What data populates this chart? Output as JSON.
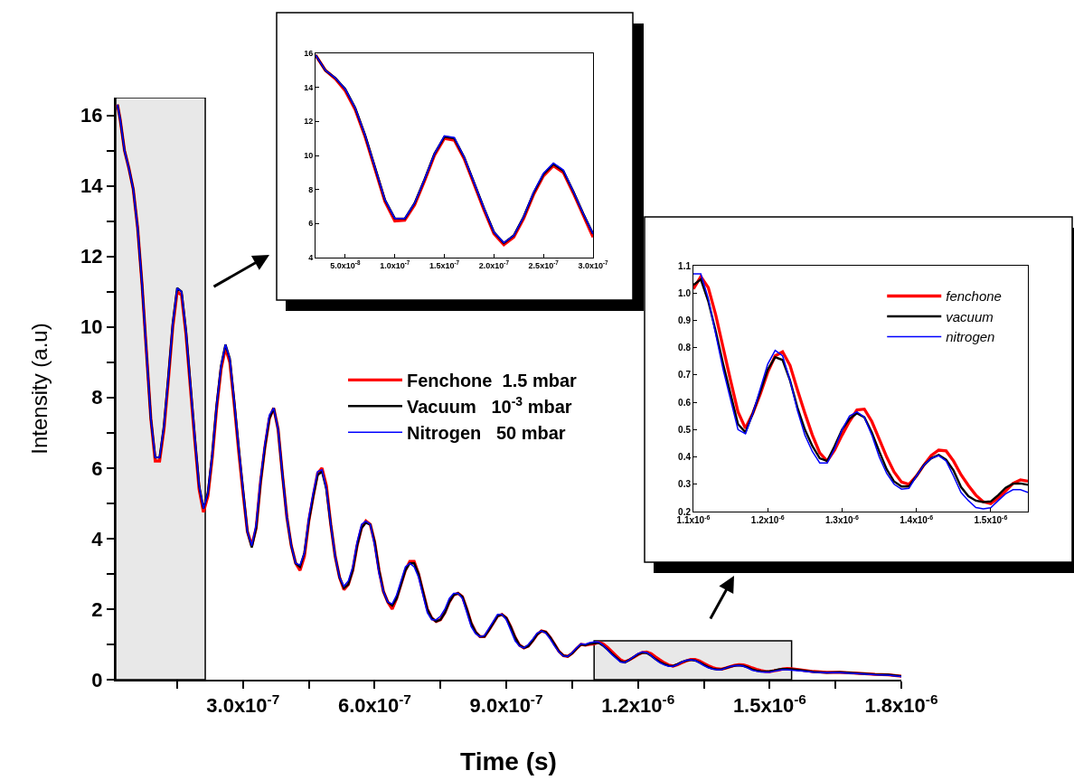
{
  "chart_data": [
    {
      "type": "line",
      "xlabel": "Time (s)",
      "ylabel": "Intensity (a.u)",
      "xlim": [
        1e-08,
        1.8e-06
      ],
      "ylim": [
        0,
        16.5
      ],
      "xticks": [
        {
          "value": 1.5e-07,
          "label": null
        },
        {
          "value": 3e-07,
          "label": "3.0x10$^{-7}$"
        },
        {
          "value": 4.5e-07,
          "label": null
        },
        {
          "value": 6e-07,
          "label": "6.0x10$^{-7}$"
        },
        {
          "value": 7.5e-07,
          "label": null
        },
        {
          "value": 9e-07,
          "label": "9.0x10$^{-7}$"
        },
        {
          "value": 1.05e-06,
          "label": null
        },
        {
          "value": 1.2e-06,
          "label": "1.2x10$^{-6}$"
        },
        {
          "value": 1.35e-06,
          "label": null
        },
        {
          "value": 1.5e-06,
          "label": "1.5x10$^{-6}$"
        },
        {
          "value": 1.65e-06,
          "label": null
        },
        {
          "value": 1.8e-06,
          "label": "1.8x10$^{-6}$"
        }
      ],
      "yticks": [
        0,
        {
          "value": 1,
          "label": null
        },
        2,
        {
          "value": 3,
          "label": null
        },
        4,
        {
          "value": 5,
          "label": null
        },
        6,
        {
          "value": 7,
          "label": null
        },
        8,
        {
          "value": 9,
          "label": null
        },
        10,
        {
          "value": 11,
          "label": null
        },
        12,
        {
          "value": 13,
          "label": null
        },
        14,
        {
          "value": 15,
          "label": null
        },
        16
      ],
      "legend": "center",
      "grid": false,
      "marker": "none",
      "line_style": "solid",
      "bands": [
        {
          "axis": "x",
          "from": 1e-08,
          "to": 2.14e-07,
          "color": "#bdbdbd"
        },
        {
          "axis": "x",
          "from": 1.1e-06,
          "to": 1.55e-06,
          "color": "#bdbdbd"
        }
      ],
      "x": [
        1.4e-08,
        2e-08,
        3e-08,
        4e-08,
        5e-08,
        6e-08,
        7e-08,
        8e-08,
        9e-08,
        1e-07,
        1.1e-07,
        1.2e-07,
        1.3e-07,
        1.4e-07,
        1.5e-07,
        1.6e-07,
        1.7e-07,
        1.8e-07,
        1.9e-07,
        2e-07,
        2.1e-07,
        2.2e-07,
        2.3e-07,
        2.4e-07,
        2.5e-07,
        2.6e-07,
        2.7e-07,
        2.8e-07,
        2.9e-07,
        3e-07,
        3.1e-07,
        3.2e-07,
        3.3e-07,
        3.4e-07,
        3.5e-07,
        3.6e-07,
        3.7e-07,
        3.8e-07,
        3.9e-07,
        4e-07,
        4.1e-07,
        4.2e-07,
        4.3e-07,
        4.4e-07,
        4.5e-07,
        4.6e-07,
        4.7e-07,
        4.8e-07,
        4.9e-07,
        5e-07,
        5.1e-07,
        5.2e-07,
        5.3e-07,
        5.4e-07,
        5.5e-07,
        5.6e-07,
        5.7e-07,
        5.8e-07,
        5.9e-07,
        6e-07,
        6.1e-07,
        6.2e-07,
        6.3e-07,
        6.4e-07,
        6.5e-07,
        6.6e-07,
        6.7e-07,
        6.8e-07,
        6.9e-07,
        7e-07,
        7.1e-07,
        7.2e-07,
        7.3e-07,
        7.4e-07,
        7.5e-07,
        7.6e-07,
        7.7e-07,
        7.8e-07,
        7.9e-07,
        8e-07,
        8.1e-07,
        8.2e-07,
        8.3e-07,
        8.4e-07,
        8.5e-07,
        8.6e-07,
        8.7e-07,
        8.8e-07,
        8.9e-07,
        9e-07,
        9.1e-07,
        9.2e-07,
        9.3e-07,
        9.4e-07,
        9.5e-07,
        9.6e-07,
        9.7e-07,
        9.8e-07,
        9.9e-07,
        1e-06,
        1.01e-06,
        1.02e-06,
        1.03e-06,
        1.04e-06,
        1.05e-06,
        1.06e-06,
        1.07e-06,
        1.08e-06,
        1.09e-06,
        1.1e-06,
        1.11e-06,
        1.12e-06,
        1.13e-06,
        1.14e-06,
        1.15e-06,
        1.16e-06,
        1.17e-06,
        1.18e-06,
        1.19e-06,
        1.2e-06,
        1.21e-06,
        1.22e-06,
        1.23e-06,
        1.24e-06,
        1.25e-06,
        1.26e-06,
        1.27e-06,
        1.28e-06,
        1.29e-06,
        1.3e-06,
        1.31e-06,
        1.32e-06,
        1.33e-06,
        1.34e-06,
        1.35e-06,
        1.36e-06,
        1.37e-06,
        1.38e-06,
        1.39e-06,
        1.4e-06,
        1.41e-06,
        1.42e-06,
        1.43e-06,
        1.44e-06,
        1.45e-06,
        1.46e-06,
        1.47e-06,
        1.48e-06,
        1.49e-06,
        1.5e-06,
        1.51e-06,
        1.52e-06,
        1.53e-06,
        1.54e-06,
        1.55e-06,
        1.57e-06,
        1.6e-06,
        1.63e-06,
        1.66e-06,
        1.7e-06,
        1.74e-06,
        1.77e-06,
        1.8e-06
      ],
      "series": [
        {
          "name": "Fenchone  1.5 mbar",
          "color": "#ff0000",
          "values": [
            16.3,
            15.9,
            15.0,
            14.5,
            13.9,
            12.8,
            11.2,
            9.3,
            7.4,
            6.2,
            6.2,
            7.1,
            8.5,
            10.0,
            11.0,
            10.9,
            9.8,
            8.3,
            6.8,
            5.4,
            4.75,
            5.2,
            6.3,
            7.7,
            8.8,
            9.4,
            9.0,
            7.8,
            6.5,
            5.3,
            4.2,
            3.8,
            4.3,
            5.6,
            6.6,
            7.4,
            7.7,
            7.1,
            5.8,
            4.6,
            3.8,
            3.3,
            3.1,
            3.5,
            4.5,
            5.2,
            5.85,
            6.0,
            5.5,
            4.4,
            3.5,
            2.9,
            2.55,
            2.7,
            3.1,
            3.8,
            4.3,
            4.5,
            4.4,
            3.9,
            3.1,
            2.5,
            2.2,
            2.0,
            2.3,
            2.7,
            3.1,
            3.35,
            3.35,
            3.0,
            2.5,
            2.0,
            1.75,
            1.65,
            1.7,
            1.9,
            2.2,
            2.4,
            2.45,
            2.35,
            2.0,
            1.6,
            1.35,
            1.22,
            1.22,
            1.4,
            1.6,
            1.8,
            1.85,
            1.75,
            1.5,
            1.2,
            0.98,
            0.9,
            0.95,
            1.1,
            1.28,
            1.38,
            1.35,
            1.2,
            1.0,
            0.8,
            0.68,
            0.66,
            0.75,
            0.88,
            1.0,
            0.98,
            1.0,
            1.015,
            1.06,
            1.02,
            0.92,
            0.8,
            0.68,
            0.565,
            0.505,
            0.56,
            0.63,
            0.71,
            0.77,
            0.785,
            0.735,
            0.645,
            0.56,
            0.48,
            0.415,
            0.385,
            0.425,
            0.48,
            0.53,
            0.572,
            0.575,
            0.53,
            0.465,
            0.4,
            0.345,
            0.308,
            0.3,
            0.33,
            0.37,
            0.405,
            0.425,
            0.422,
            0.385,
            0.335,
            0.295,
            0.26,
            0.236,
            0.229,
            0.25,
            0.275,
            0.303,
            0.316,
            0.311,
            0.28,
            0.23,
            0.21,
            0.21,
            0.18,
            0.15,
            0.14,
            0.1
          ]
        },
        {
          "name": "Vacuum   10$^{-3}$ mbar",
          "color": "#000000",
          "values": [
            16.3,
            15.9,
            15.0,
            14.5,
            13.9,
            12.8,
            11.2,
            9.3,
            7.4,
            6.3,
            6.3,
            7.2,
            8.6,
            10.1,
            11.1,
            11.0,
            9.9,
            8.4,
            6.9,
            5.5,
            4.85,
            5.3,
            6.4,
            7.8,
            8.9,
            9.5,
            9.1,
            7.9,
            6.6,
            5.4,
            4.2,
            3.75,
            4.3,
            5.6,
            6.6,
            7.4,
            7.7,
            7.1,
            5.8,
            4.6,
            3.8,
            3.3,
            3.2,
            3.6,
            4.5,
            5.2,
            5.8,
            5.9,
            5.4,
            4.4,
            3.5,
            2.9,
            2.6,
            2.7,
            3.1,
            3.8,
            4.3,
            4.45,
            4.4,
            3.9,
            3.1,
            2.5,
            2.2,
            2.1,
            2.3,
            2.7,
            3.1,
            3.3,
            3.3,
            3.0,
            2.5,
            2.0,
            1.75,
            1.65,
            1.7,
            1.9,
            2.2,
            2.4,
            2.45,
            2.35,
            2.0,
            1.6,
            1.35,
            1.22,
            1.22,
            1.4,
            1.6,
            1.8,
            1.85,
            1.75,
            1.5,
            1.2,
            0.98,
            0.9,
            0.95,
            1.1,
            1.28,
            1.38,
            1.35,
            1.2,
            1.0,
            0.8,
            0.68,
            0.66,
            0.75,
            0.88,
            1.0,
            0.98,
            1.02,
            1.03,
            1.05,
            0.97,
            0.86,
            0.74,
            0.63,
            0.52,
            0.49,
            0.56,
            0.64,
            0.72,
            0.765,
            0.755,
            0.68,
            0.58,
            0.5,
            0.44,
            0.395,
            0.385,
            0.44,
            0.5,
            0.54,
            0.56,
            0.545,
            0.49,
            0.42,
            0.355,
            0.31,
            0.292,
            0.292,
            0.33,
            0.37,
            0.395,
            0.407,
            0.39,
            0.35,
            0.29,
            0.256,
            0.24,
            0.235,
            0.237,
            0.26,
            0.287,
            0.302,
            0.303,
            0.298,
            0.27,
            0.22,
            0.2,
            0.21,
            0.18,
            0.15,
            0.14,
            0.1
          ]
        },
        {
          "name": "Nitrogen   50 mbar",
          "color": "#0000ff",
          "values": [
            16.3,
            15.9,
            15.0,
            14.5,
            13.9,
            12.8,
            11.2,
            9.3,
            7.4,
            6.3,
            6.3,
            7.2,
            8.6,
            10.1,
            11.1,
            11.0,
            9.9,
            8.4,
            6.9,
            5.5,
            4.85,
            5.3,
            6.4,
            7.8,
            8.9,
            9.5,
            9.1,
            7.9,
            6.6,
            5.4,
            4.2,
            3.8,
            4.4,
            5.7,
            6.7,
            7.5,
            7.7,
            7.1,
            5.8,
            4.6,
            3.8,
            3.3,
            3.25,
            3.6,
            4.6,
            5.3,
            5.9,
            5.95,
            5.4,
            4.4,
            3.5,
            2.9,
            2.65,
            2.8,
            3.2,
            3.9,
            4.4,
            4.5,
            4.4,
            3.8,
            3.0,
            2.5,
            2.2,
            2.15,
            2.4,
            2.8,
            3.2,
            3.3,
            3.2,
            2.9,
            2.4,
            1.9,
            1.7,
            1.7,
            1.8,
            2.0,
            2.3,
            2.45,
            2.45,
            2.3,
            1.9,
            1.5,
            1.3,
            1.22,
            1.25,
            1.45,
            1.65,
            1.85,
            1.85,
            1.7,
            1.4,
            1.1,
            0.95,
            0.9,
            1.0,
            1.15,
            1.32,
            1.38,
            1.32,
            1.15,
            0.95,
            0.78,
            0.67,
            0.66,
            0.77,
            0.9,
            1.02,
            1.0,
            1.05,
            1.07,
            1.07,
            0.98,
            0.85,
            0.72,
            0.61,
            0.5,
            0.485,
            0.56,
            0.65,
            0.74,
            0.79,
            0.77,
            0.68,
            0.57,
            0.48,
            0.42,
            0.378,
            0.378,
            0.43,
            0.5,
            0.55,
            0.565,
            0.545,
            0.48,
            0.4,
            0.34,
            0.3,
            0.282,
            0.285,
            0.33,
            0.37,
            0.395,
            0.405,
            0.385,
            0.33,
            0.27,
            0.24,
            0.215,
            0.21,
            0.214,
            0.24,
            0.265,
            0.28,
            0.28,
            0.27,
            0.25,
            0.21,
            0.2,
            0.2,
            0.17,
            0.14,
            0.13,
            0.09
          ]
        }
      ]
    },
    {
      "type": "line",
      "xlim": [
        2e-08,
        3e-07
      ],
      "ylim": [
        4,
        16
      ],
      "xticks": [
        {
          "value": 5e-08,
          "label": "5.0x10$^{-8}$"
        },
        {
          "value": 1e-07,
          "label": "1.0x10$^{-7}$"
        },
        {
          "value": 1.5e-07,
          "label": "1.5x10$^{-7}$"
        },
        {
          "value": 2e-07,
          "label": "2.0x10$^{-7}$"
        },
        {
          "value": 2.5e-07,
          "label": "2.5x10$^{-7}$"
        },
        {
          "value": 3e-07,
          "label": "3.0x10$^{-7}$"
        }
      ],
      "yticks": [
        4,
        6,
        8,
        10,
        12,
        14,
        16
      ],
      "grid": false,
      "marker": "none",
      "line_style": "solid",
      "x": [
        2e-08,
        3e-08,
        4e-08,
        5e-08,
        6e-08,
        7e-08,
        8e-08,
        9e-08,
        1e-07,
        1.1e-07,
        1.2e-07,
        1.3e-07,
        1.4e-07,
        1.5e-07,
        1.6e-07,
        1.7e-07,
        1.8e-07,
        1.9e-07,
        2e-07,
        2.1e-07,
        2.2e-07,
        2.3e-07,
        2.4e-07,
        2.5e-07,
        2.6e-07,
        2.7e-07,
        2.8e-07,
        2.9e-07,
        3e-07
      ],
      "series": [
        {
          "color": "#ff0000",
          "values": [
            15.9,
            15.0,
            14.5,
            13.8,
            12.7,
            11.1,
            9.2,
            7.3,
            6.15,
            6.2,
            7.1,
            8.5,
            10.0,
            11.0,
            10.9,
            9.8,
            8.3,
            6.8,
            5.4,
            4.75,
            5.2,
            6.3,
            7.7,
            8.8,
            9.4,
            9.0,
            7.8,
            6.5,
            5.2
          ]
        },
        {
          "color": "#000000",
          "values": [
            15.9,
            15.0,
            14.55,
            13.9,
            12.8,
            11.2,
            9.3,
            7.4,
            6.3,
            6.28,
            7.2,
            8.6,
            10.1,
            11.1,
            11.0,
            9.9,
            8.4,
            6.9,
            5.5,
            4.85,
            5.3,
            6.4,
            7.8,
            8.9,
            9.5,
            9.1,
            7.9,
            6.6,
            5.4
          ]
        },
        {
          "color": "#0000ff",
          "values": [
            15.9,
            15.0,
            14.55,
            13.9,
            12.8,
            11.2,
            9.3,
            7.4,
            6.3,
            6.3,
            7.2,
            8.6,
            10.1,
            11.15,
            11.05,
            9.9,
            8.4,
            6.9,
            5.5,
            4.87,
            5.3,
            6.4,
            7.85,
            8.95,
            9.55,
            9.15,
            7.9,
            6.6,
            5.4
          ]
        }
      ]
    },
    {
      "type": "line",
      "xlim": [
        1.1e-06,
        1.55e-06
      ],
      "ylim": [
        0.2,
        1.1
      ],
      "xticks": [
        {
          "value": 1.1e-06,
          "label": "1.1x10$^{-6}$"
        },
        {
          "value": 1.2e-06,
          "label": "1.2x10$^{-6}$"
        },
        {
          "value": 1.3e-06,
          "label": "1.3x10$^{-6}$"
        },
        {
          "value": 1.4e-06,
          "label": "1.4x10$^{-6}$"
        },
        {
          "value": 1.5e-06,
          "label": "1.5x10$^{-6}$"
        }
      ],
      "yticks": [
        0.2,
        0.3,
        0.4,
        0.5,
        0.6,
        0.7,
        0.8,
        0.9,
        {
          "value": 1.0,
          "label": "1.0"
        },
        1.1
      ],
      "legend": "top right",
      "grid": false,
      "marker": "none",
      "line_style": "solid",
      "x": [
        1.1e-06,
        1.11e-06,
        1.12e-06,
        1.13e-06,
        1.14e-06,
        1.15e-06,
        1.16e-06,
        1.17e-06,
        1.18e-06,
        1.19e-06,
        1.2e-06,
        1.21e-06,
        1.22e-06,
        1.23e-06,
        1.24e-06,
        1.25e-06,
        1.26e-06,
        1.27e-06,
        1.28e-06,
        1.29e-06,
        1.3e-06,
        1.31e-06,
        1.32e-06,
        1.33e-06,
        1.34e-06,
        1.35e-06,
        1.36e-06,
        1.37e-06,
        1.38e-06,
        1.39e-06,
        1.4e-06,
        1.41e-06,
        1.42e-06,
        1.43e-06,
        1.44e-06,
        1.45e-06,
        1.46e-06,
        1.47e-06,
        1.48e-06,
        1.49e-06,
        1.5e-06,
        1.51e-06,
        1.52e-06,
        1.53e-06,
        1.54e-06,
        1.55e-06
      ],
      "series": [
        {
          "name": "fenchone",
          "color": "#ff0000",
          "values": [
            1.015,
            1.06,
            1.02,
            0.92,
            0.8,
            0.68,
            0.565,
            0.505,
            0.56,
            0.63,
            0.71,
            0.77,
            0.785,
            0.735,
            0.645,
            0.56,
            0.48,
            0.415,
            0.385,
            0.425,
            0.48,
            0.53,
            0.572,
            0.575,
            0.53,
            0.465,
            0.4,
            0.345,
            0.308,
            0.3,
            0.33,
            0.37,
            0.405,
            0.425,
            0.422,
            0.385,
            0.335,
            0.295,
            0.26,
            0.236,
            0.229,
            0.25,
            0.275,
            0.303,
            0.316,
            0.311
          ]
        },
        {
          "name": "vacuum",
          "color": "#000000",
          "values": [
            1.03,
            1.05,
            0.97,
            0.86,
            0.74,
            0.63,
            0.52,
            0.49,
            0.56,
            0.64,
            0.72,
            0.765,
            0.755,
            0.68,
            0.58,
            0.5,
            0.44,
            0.395,
            0.385,
            0.44,
            0.5,
            0.54,
            0.56,
            0.545,
            0.49,
            0.42,
            0.355,
            0.31,
            0.292,
            0.292,
            0.33,
            0.37,
            0.395,
            0.407,
            0.39,
            0.35,
            0.29,
            0.256,
            0.24,
            0.235,
            0.237,
            0.26,
            0.287,
            0.302,
            0.303,
            0.298
          ]
        },
        {
          "name": "nitrogen",
          "color": "#0000ff",
          "values": [
            1.07,
            1.07,
            0.98,
            0.85,
            0.72,
            0.61,
            0.5,
            0.485,
            0.56,
            0.65,
            0.74,
            0.79,
            0.77,
            0.68,
            0.57,
            0.48,
            0.42,
            0.378,
            0.378,
            0.43,
            0.5,
            0.55,
            0.565,
            0.545,
            0.48,
            0.4,
            0.34,
            0.3,
            0.282,
            0.285,
            0.33,
            0.37,
            0.395,
            0.405,
            0.385,
            0.33,
            0.27,
            0.24,
            0.215,
            0.21,
            0.214,
            0.24,
            0.265,
            0.28,
            0.28,
            0.27
          ]
        }
      ]
    }
  ]
}
